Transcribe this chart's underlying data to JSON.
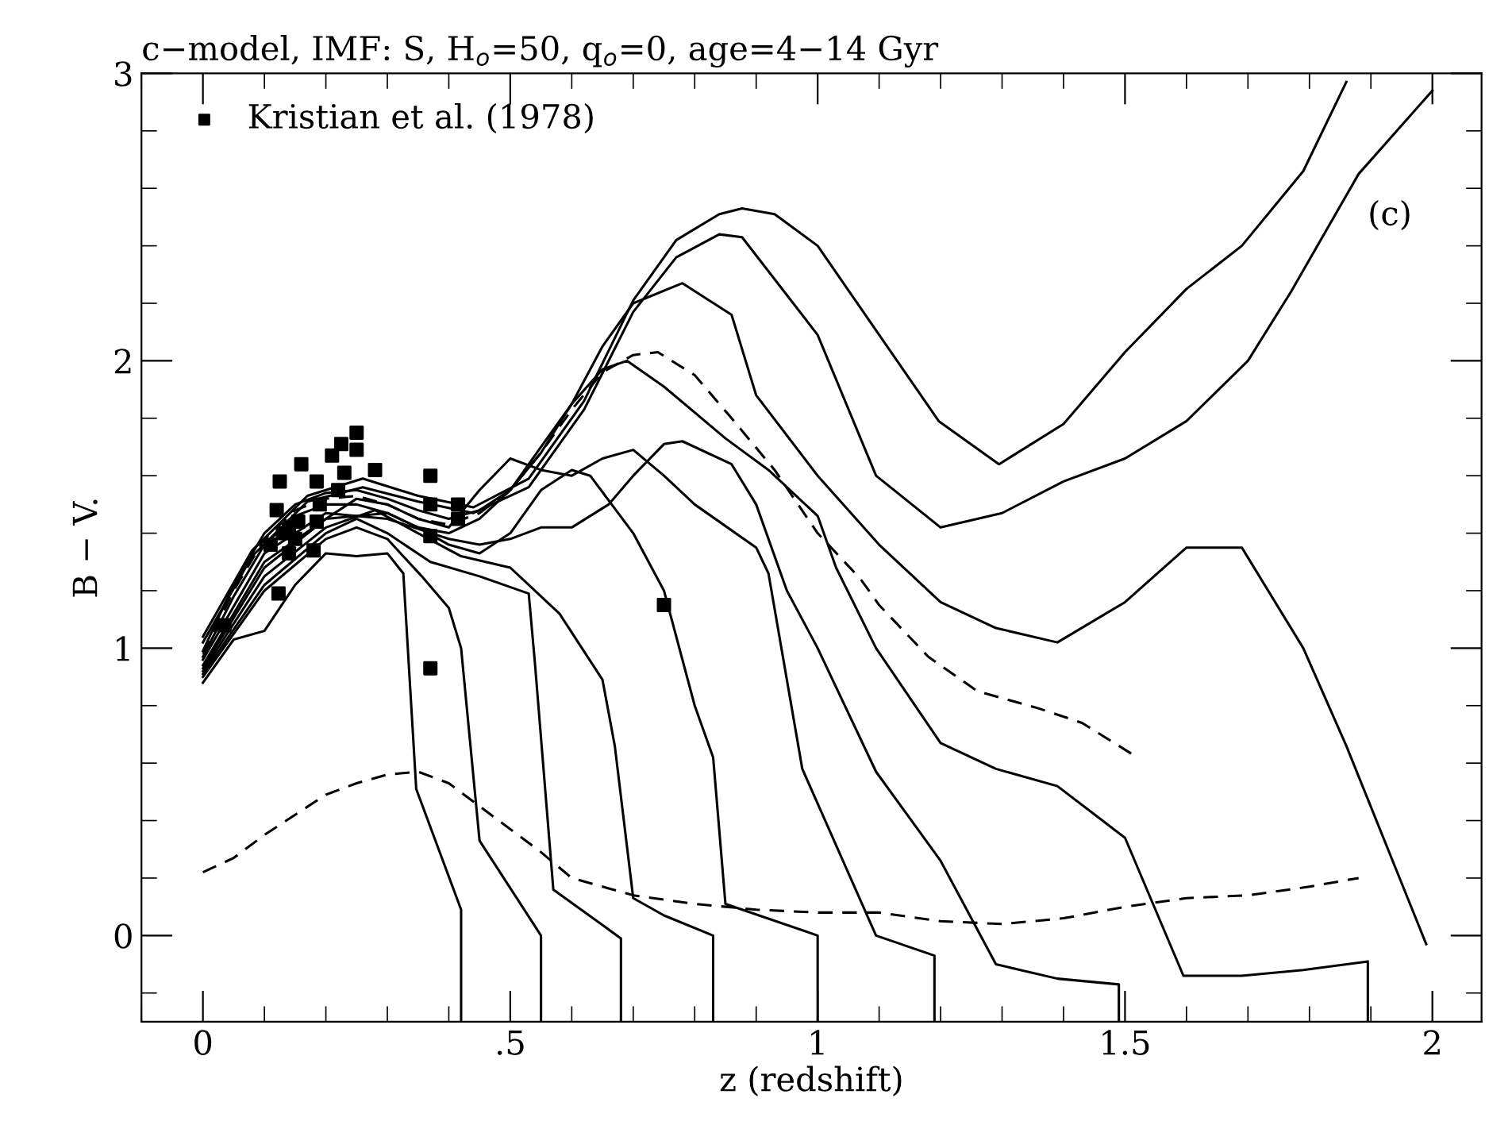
{
  "chart_data": {
    "type": "line",
    "title": "c−model, IMF: S, H$_{o}$=50, q$_{o}$=0, age=4−14 Gyr",
    "xlabel": "z (redshift)",
    "ylabel": "B − V.",
    "xlim": [
      -0.1,
      2.08
    ],
    "ylim": [
      -0.3,
      3
    ],
    "xticks": [
      0,
      {
        "value": 0.5,
        "label": ".5"
      },
      1,
      1.5,
      2
    ],
    "yticks": [
      0,
      1,
      2,
      3
    ],
    "grid": false,
    "legend": "top left",
    "annotations": [
      "(c)"
    ],
    "series": [
      {
        "type": "line",
        "line_style": "solid",
        "color": "#000000",
        "x": [
          0,
          0.08,
          0.17,
          0.26,
          0.35,
          0.44,
          0.53,
          0.62,
          0.7,
          0.77,
          0.84,
          0.877,
          0.93,
          1.0,
          1.197,
          1.295,
          1.4,
          1.5,
          1.6,
          1.69,
          1.79,
          1.86
        ],
        "values": [
          1.04,
          1.34,
          1.53,
          1.59,
          1.53,
          1.49,
          1.59,
          1.86,
          2.21,
          2.42,
          2.51,
          2.53,
          2.51,
          2.4,
          1.79,
          1.64,
          1.78,
          2.03,
          2.25,
          2.4,
          2.66,
          2.97
        ]
      },
      {
        "type": "line",
        "line_style": "solid",
        "color": "#000000",
        "x": [
          0,
          0.08,
          0.17,
          0.26,
          0.35,
          0.44,
          0.53,
          0.62,
          0.7,
          0.77,
          0.84,
          0.877,
          1.0,
          1.095,
          1.2,
          1.3,
          1.4,
          1.5,
          1.6,
          1.7,
          1.77,
          1.88,
          2.0
        ],
        "values": [
          1.02,
          1.32,
          1.51,
          1.56,
          1.51,
          1.47,
          1.56,
          1.83,
          2.17,
          2.36,
          2.44,
          2.43,
          2.09,
          1.6,
          1.42,
          1.47,
          1.58,
          1.66,
          1.79,
          2.0,
          2.24,
          2.65,
          2.94
        ]
      },
      {
        "type": "line",
        "line_style": "solid",
        "color": "#000000",
        "x": [
          0,
          0.05,
          0.1,
          0.15,
          0.2,
          0.25,
          0.3,
          0.35,
          0.4,
          0.45,
          0.5,
          0.55,
          0.6,
          0.65,
          0.7,
          0.78,
          0.86,
          0.9,
          1.0,
          1.1,
          1.2,
          1.29,
          1.39,
          1.5,
          1.6,
          1.69,
          1.79,
          1.86,
          1.99
        ],
        "values": [
          0.99,
          1.22,
          1.4,
          1.5,
          1.54,
          1.55,
          1.52,
          1.48,
          1.45,
          1.48,
          1.55,
          1.68,
          1.85,
          2.05,
          2.2,
          2.27,
          2.16,
          1.88,
          1.6,
          1.36,
          1.16,
          1.07,
          1.02,
          1.16,
          1.35,
          1.35,
          1.0,
          0.66,
          -0.03
        ]
      },
      {
        "type": "line",
        "line_style": "dashed",
        "color": "#000000",
        "x": [
          0,
          0.05,
          0.1,
          0.15,
          0.2,
          0.25,
          0.3,
          0.35,
          0.4,
          0.45,
          0.5,
          0.55,
          0.6,
          0.65,
          0.7,
          0.74,
          0.8,
          0.86,
          0.93,
          1.0,
          1.07,
          1.1,
          1.18,
          1.26,
          1.36,
          1.43,
          1.52
        ],
        "values": [
          0.98,
          1.2,
          1.38,
          1.48,
          1.52,
          1.53,
          1.5,
          1.45,
          1.43,
          1.47,
          1.55,
          1.68,
          1.83,
          1.96,
          2.02,
          2.03,
          1.95,
          1.8,
          1.62,
          1.4,
          1.24,
          1.15,
          0.97,
          0.85,
          0.79,
          0.74,
          0.62
        ]
      },
      {
        "type": "line",
        "line_style": "solid",
        "color": "#000000",
        "x": [
          0,
          0.05,
          0.1,
          0.15,
          0.2,
          0.25,
          0.3,
          0.35,
          0.4,
          0.45,
          0.5,
          0.55,
          0.6,
          0.65,
          0.69,
          0.75,
          0.85,
          0.92,
          1.0,
          1.03,
          1.095,
          1.2,
          1.29,
          1.39,
          1.5,
          1.595,
          1.69,
          1.79,
          1.895,
          1.895
        ],
        "values": [
          0.97,
          1.18,
          1.36,
          1.46,
          1.5,
          1.5,
          1.47,
          1.42,
          1.4,
          1.45,
          1.55,
          1.7,
          1.85,
          1.97,
          2.0,
          1.91,
          1.73,
          1.62,
          1.46,
          1.28,
          1.0,
          0.67,
          0.58,
          0.52,
          0.34,
          -0.14,
          -0.14,
          -0.12,
          -0.09,
          -0.3
        ]
      },
      {
        "type": "line",
        "line_style": "solid",
        "color": "#000000",
        "x": [
          0,
          0.1,
          0.2,
          0.3,
          0.4,
          0.45,
          0.5,
          0.55,
          0.6,
          0.66,
          0.7,
          0.75,
          0.78,
          0.86,
          0.9,
          0.95,
          1.0,
          1.095,
          1.2,
          1.29,
          1.39,
          1.49,
          1.49
        ],
        "values": [
          0.96,
          1.33,
          1.47,
          1.45,
          1.38,
          1.36,
          1.38,
          1.42,
          1.42,
          1.5,
          1.6,
          1.71,
          1.72,
          1.64,
          1.5,
          1.2,
          1.0,
          0.57,
          0.26,
          -0.1,
          -0.15,
          -0.17,
          -0.3
        ]
      },
      {
        "type": "line",
        "line_style": "solid",
        "color": "#000000",
        "x": [
          0,
          0.1,
          0.2,
          0.25,
          0.3,
          0.35,
          0.4,
          0.45,
          0.5,
          0.55,
          0.6,
          0.65,
          0.7,
          0.75,
          0.8,
          0.9,
          0.92,
          0.975,
          1.095,
          1.19,
          1.19
        ],
        "values": [
          0.94,
          1.3,
          1.45,
          1.52,
          1.5,
          1.45,
          1.42,
          1.55,
          1.66,
          1.62,
          1.6,
          1.66,
          1.69,
          1.6,
          1.5,
          1.35,
          1.26,
          0.58,
          0.0,
          -0.07,
          -0.3
        ]
      },
      {
        "type": "line",
        "line_style": "solid",
        "color": "#000000",
        "x": [
          0,
          0.1,
          0.2,
          0.3,
          0.35,
          0.4,
          0.45,
          0.5,
          0.55,
          0.6,
          0.63,
          0.7,
          0.75,
          0.8,
          0.83,
          0.85,
          1.0,
          1.0
        ],
        "values": [
          0.93,
          1.28,
          1.45,
          1.47,
          1.42,
          1.36,
          1.33,
          1.4,
          1.55,
          1.62,
          1.6,
          1.4,
          1.2,
          0.8,
          0.62,
          0.11,
          0.0,
          -0.3
        ]
      },
      {
        "type": "line",
        "line_style": "solid",
        "color": "#000000",
        "x": [
          0,
          0.1,
          0.2,
          0.28,
          0.35,
          0.42,
          0.5,
          0.53,
          0.58,
          0.65,
          0.67,
          0.7,
          0.75,
          0.83,
          0.83
        ],
        "values": [
          0.92,
          1.25,
          1.42,
          1.48,
          1.4,
          1.32,
          1.28,
          1.22,
          1.12,
          0.89,
          0.66,
          0.13,
          0.07,
          0.0,
          -0.3
        ]
      },
      {
        "type": "line",
        "line_style": "solid",
        "color": "#000000",
        "x": [
          0,
          0.1,
          0.2,
          0.25,
          0.3,
          0.37,
          0.45,
          0.53,
          0.54,
          0.57,
          0.68,
          0.68
        ],
        "values": [
          0.91,
          1.22,
          1.4,
          1.45,
          1.4,
          1.3,
          1.25,
          1.19,
          0.95,
          0.16,
          -0.01,
          -0.3
        ]
      },
      {
        "type": "line",
        "line_style": "solid",
        "color": "#000000",
        "x": [
          0,
          0.1,
          0.2,
          0.25,
          0.3,
          0.356,
          0.4,
          0.42,
          0.45,
          0.55,
          0.55
        ],
        "values": [
          0.9,
          1.2,
          1.38,
          1.42,
          1.38,
          1.25,
          1.14,
          1.0,
          0.33,
          0.0,
          -0.3
        ]
      },
      {
        "type": "line",
        "line_style": "solid",
        "color": "#000000",
        "x": [
          0,
          0.05,
          0.1,
          0.15,
          0.2,
          0.25,
          0.3,
          0.326,
          0.347,
          0.42,
          0.42
        ],
        "values": [
          0.88,
          1.03,
          1.06,
          1.22,
          1.33,
          1.32,
          1.33,
          1.26,
          0.51,
          0.09,
          -0.3
        ]
      },
      {
        "type": "line",
        "line_style": "dashed",
        "color": "#000000",
        "x": [
          0,
          0.05,
          0.1,
          0.15,
          0.2,
          0.25,
          0.3,
          0.35,
          0.4,
          0.45,
          0.5,
          0.55,
          0.6,
          0.7,
          0.8,
          0.9,
          1.0,
          1.1,
          1.2,
          1.3,
          1.4,
          1.5,
          1.6,
          1.7,
          1.8,
          1.88
        ],
        "values": [
          0.22,
          0.27,
          0.35,
          0.42,
          0.49,
          0.53,
          0.56,
          0.57,
          0.53,
          0.45,
          0.37,
          0.29,
          0.2,
          0.14,
          0.11,
          0.09,
          0.08,
          0.08,
          0.05,
          0.04,
          0.06,
          0.1,
          0.13,
          0.14,
          0.17,
          0.2
        ]
      },
      {
        "type": "scatter",
        "name": "Kristian et al. (1978)",
        "marker": "square",
        "color": "#000000",
        "x": [
          0.035,
          0.11,
          0.12,
          0.123,
          0.125,
          0.13,
          0.14,
          0.14,
          0.15,
          0.155,
          0.16,
          0.18,
          0.185,
          0.185,
          0.19,
          0.21,
          0.22,
          0.225,
          0.23,
          0.25,
          0.25,
          0.28,
          0.37,
          0.37,
          0.37,
          0.37,
          0.415,
          0.415,
          0.75
        ],
        "values": [
          1.08,
          1.36,
          1.48,
          1.19,
          1.58,
          1.4,
          1.33,
          1.42,
          1.38,
          1.44,
          1.64,
          1.34,
          1.44,
          1.58,
          1.5,
          1.67,
          1.55,
          1.71,
          1.61,
          1.69,
          1.75,
          1.62,
          1.6,
          1.5,
          1.39,
          0.93,
          1.5,
          1.45,
          1.15
        ]
      }
    ]
  }
}
